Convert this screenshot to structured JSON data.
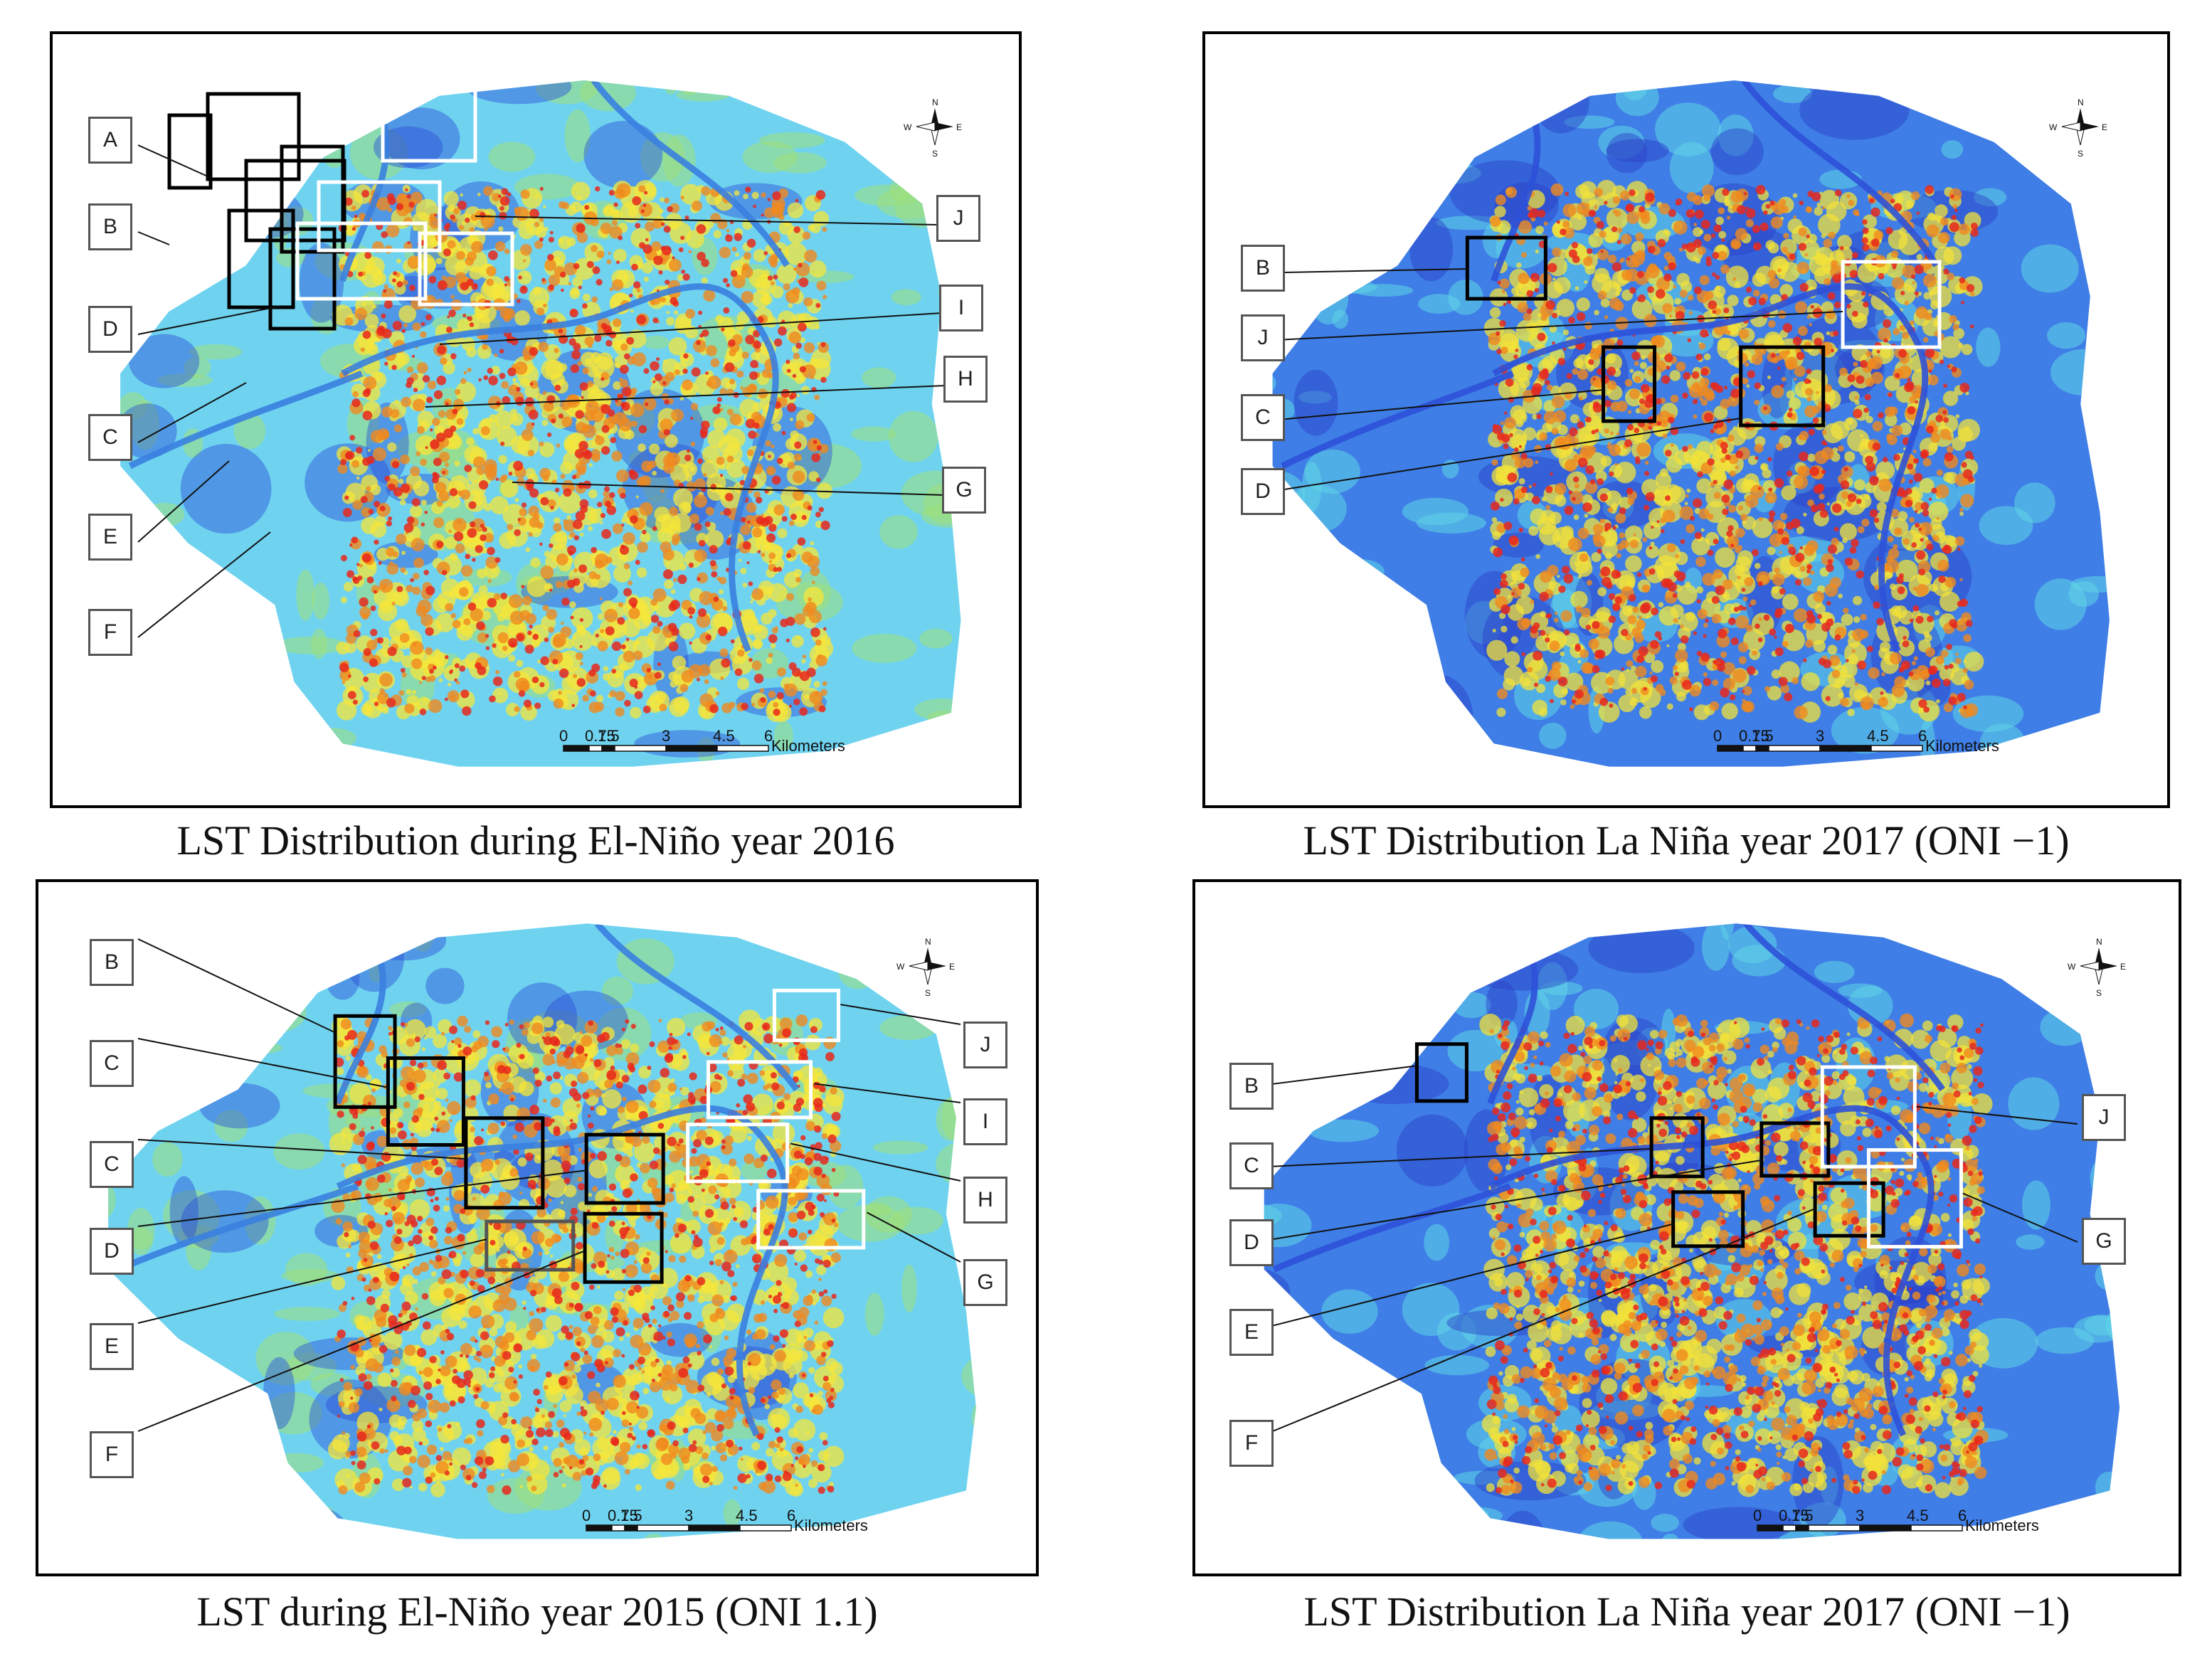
{
  "panels": [
    {
      "id": "p1",
      "caption": "LST Distribution during El-Niño year 2016",
      "palette": "warm",
      "scale": {
        "ticks": [
          "0",
          "0.75",
          "1.5",
          "3",
          "4.5",
          "6"
        ],
        "unit": "Kilometers"
      },
      "compass": {
        "n": "N",
        "s": "S",
        "e": "E",
        "w": "W"
      },
      "labels": [
        "A",
        "B",
        "D",
        "C",
        "E",
        "F",
        "J",
        "I",
        "H",
        "G"
      ]
    },
    {
      "id": "p2",
      "caption": "LST Distribution La Niña year 2017 (ONI −1)",
      "palette": "cool",
      "scale": {
        "ticks": [
          "0",
          "0.75",
          "1.5",
          "3",
          "4.5",
          "6"
        ],
        "unit": "Kilometers"
      },
      "compass": {
        "n": "N",
        "s": "S",
        "e": "E",
        "w": "W"
      },
      "labels": [
        "B",
        "J",
        "C",
        "D"
      ]
    },
    {
      "id": "p3",
      "caption": "LST during El-Niño year 2015 (ONI 1.1)",
      "palette": "warm",
      "scale": {
        "ticks": [
          "0",
          "0.75",
          "1.5",
          "3",
          "4.5",
          "6"
        ],
        "unit": "Kilometers"
      },
      "compass": {
        "n": "N",
        "s": "S",
        "e": "E",
        "w": "W"
      },
      "labels": [
        "B",
        "C",
        "C",
        "D",
        "E",
        "F",
        "J",
        "I",
        "H",
        "G"
      ]
    },
    {
      "id": "p4",
      "caption": "LST Distribution La Niña year 2017 (ONI −1)",
      "palette": "cool",
      "scale": {
        "ticks": [
          "0",
          "0.75",
          "1.5",
          "3",
          "4.5",
          "6"
        ],
        "unit": "Kilometers"
      },
      "compass": {
        "n": "N",
        "s": "S",
        "e": "E",
        "w": "W"
      },
      "labels": [
        "B",
        "C",
        "D",
        "E",
        "F",
        "J",
        "G"
      ]
    }
  ],
  "colors": {
    "warm": {
      "base": "#6fd3f0",
      "water": "#3a7fe0",
      "deep": "#2a4fd6",
      "hot": "#e8281c",
      "warmer": "#f08a1e",
      "mid": "#f5e63a",
      "green": "#9fe07a"
    },
    "cool": {
      "base": "#3f7ee6",
      "water": "#2d52d8",
      "deep": "#2a3fc8",
      "hot": "#e8281c",
      "warmer": "#f08a1e",
      "mid": "#f2e23a",
      "green": "#5fd6e6"
    }
  }
}
